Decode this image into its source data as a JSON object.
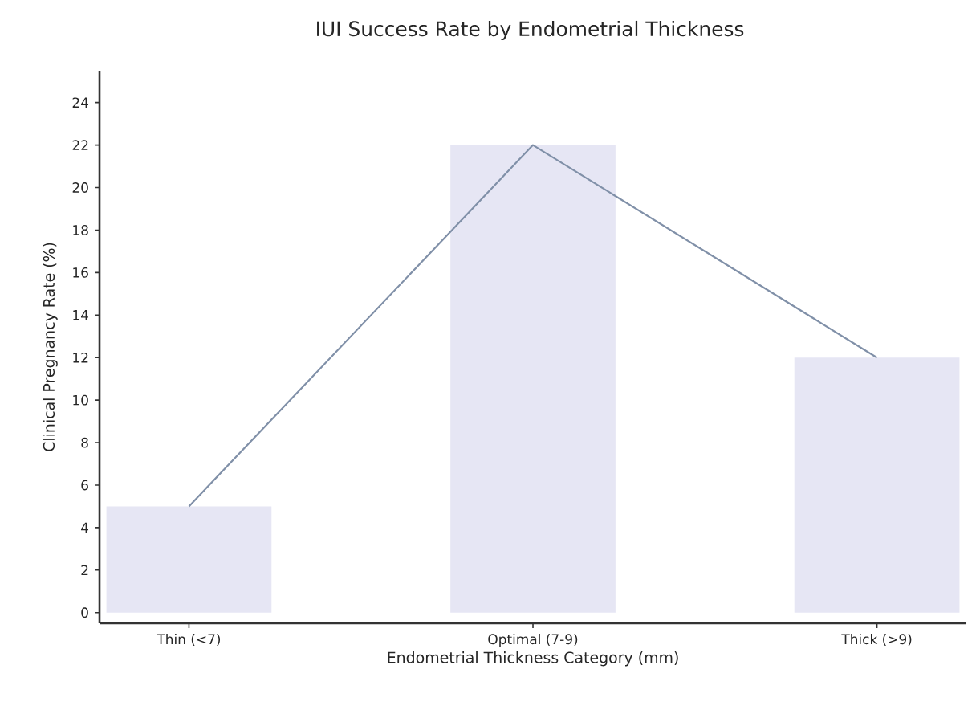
{
  "chart_data": {
    "type": "bar",
    "title": "IUI Success Rate by Endometrial Thickness",
    "xlabel": "Endometrial Thickness Category (mm)",
    "ylabel": "Clinical Pregnancy Rate (%)",
    "categories": [
      "Thin (<7)",
      "Optimal (7-9)",
      "Thick (>9)"
    ],
    "series": [
      {
        "color": "#e6e6f4",
        "values": [
          5,
          22,
          12
        ]
      },
      {
        "type": "line",
        "color": "#8090a8",
        "values": [
          5,
          22,
          12
        ]
      }
    ],
    "ylim": [
      -0.5,
      25.5
    ],
    "yticks": [
      0,
      2,
      4,
      6,
      8,
      10,
      12,
      14,
      16,
      18,
      20,
      22,
      24
    ],
    "grid": false
  }
}
